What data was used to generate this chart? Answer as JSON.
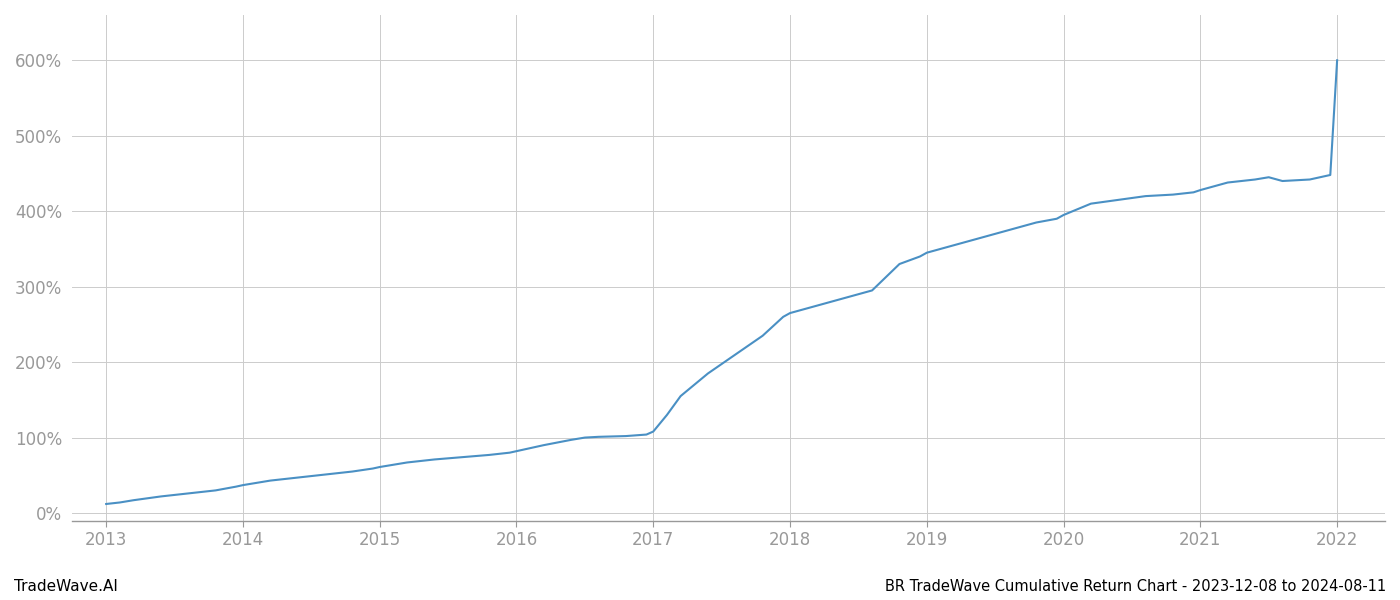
{
  "title": "BR TradeWave Cumulative Return Chart - 2023-12-08 to 2024-08-11",
  "watermark": "TradeWave.AI",
  "line_color": "#4a90c4",
  "background_color": "#ffffff",
  "grid_color": "#cccccc",
  "y_ticks": [
    0,
    100,
    200,
    300,
    400,
    500,
    600
  ],
  "x_tick_years": [
    2013,
    2014,
    2015,
    2016,
    2017,
    2018,
    2019,
    2020,
    2021,
    2022
  ],
  "data_x": [
    2013.0,
    2013.1,
    2013.2,
    2013.4,
    2013.6,
    2013.8,
    2013.95,
    2014.0,
    2014.2,
    2014.4,
    2014.6,
    2014.8,
    2014.95,
    2015.0,
    2015.2,
    2015.4,
    2015.6,
    2015.8,
    2015.95,
    2016.0,
    2016.2,
    2016.4,
    2016.5,
    2016.6,
    2016.8,
    2016.95,
    2017.0,
    2017.1,
    2017.2,
    2017.4,
    2017.6,
    2017.8,
    2017.95,
    2018.0,
    2018.2,
    2018.4,
    2018.6,
    2018.8,
    2018.95,
    2019.0,
    2019.2,
    2019.4,
    2019.6,
    2019.8,
    2019.95,
    2020.0,
    2020.2,
    2020.4,
    2020.6,
    2020.8,
    2020.95,
    2021.0,
    2021.1,
    2021.2,
    2021.4,
    2021.5,
    2021.6,
    2021.8,
    2021.95,
    2022.0
  ],
  "data_y": [
    12,
    14,
    17,
    22,
    26,
    30,
    35,
    37,
    43,
    47,
    51,
    55,
    59,
    61,
    67,
    71,
    74,
    77,
    80,
    82,
    90,
    97,
    100,
    101,
    102,
    104,
    108,
    130,
    155,
    185,
    210,
    235,
    260,
    265,
    275,
    285,
    295,
    330,
    340,
    345,
    355,
    365,
    375,
    385,
    390,
    395,
    410,
    415,
    420,
    422,
    425,
    428,
    433,
    438,
    442,
    445,
    440,
    442,
    448,
    600
  ],
  "ylim": [
    -10,
    660
  ],
  "xlim": [
    2012.75,
    2022.35
  ],
  "title_fontsize": 10.5,
  "tick_fontsize": 12,
  "watermark_fontsize": 11,
  "line_width": 1.5,
  "axis_color": "#999999",
  "tick_color": "#999999",
  "label_color": "#333333"
}
